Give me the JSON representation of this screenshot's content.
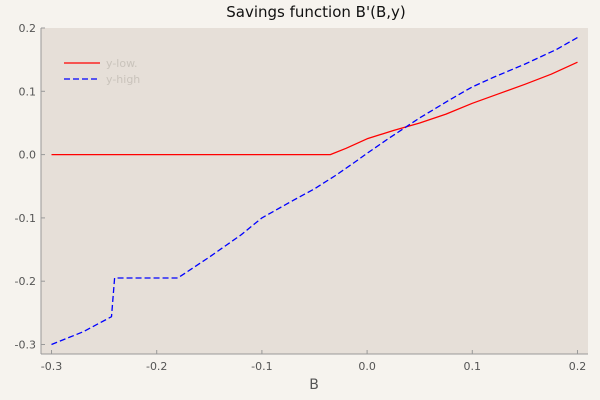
{
  "chart_data": {
    "type": "line",
    "title": "Savings function B'(B,y)",
    "xlabel": "B",
    "ylabel": "",
    "xlim": [
      -0.31,
      0.21
    ],
    "ylim": [
      -0.315,
      0.2
    ],
    "xticks": [
      -0.3,
      -0.2,
      -0.1,
      0.0,
      0.1,
      0.2
    ],
    "xtick_labels": [
      "-0.3",
      "-0.2",
      "-0.1",
      "0.0",
      "0.1",
      "0.2"
    ],
    "yticks": [
      -0.3,
      -0.2,
      -0.1,
      0.0,
      0.1,
      0.2
    ],
    "ytick_labels": [
      "-0.3",
      "-0.2",
      "-0.1",
      "0.0",
      "0.1",
      "0.2"
    ],
    "grid": false,
    "legend_position": "top-left",
    "background_color": "#e6dfd8",
    "series": [
      {
        "name": "y-low.",
        "color": "#ff0000",
        "style": "solid",
        "x": [
          -0.3,
          -0.25,
          -0.2,
          -0.15,
          -0.1,
          -0.05,
          -0.035,
          -0.02,
          0.0,
          0.025,
          0.05,
          0.075,
          0.1,
          0.125,
          0.15,
          0.175,
          0.2
        ],
        "y": [
          0.0,
          0.0,
          0.0,
          0.0,
          0.0,
          0.0,
          0.0,
          0.01,
          0.025,
          0.038,
          0.05,
          0.064,
          0.081,
          0.096,
          0.111,
          0.127,
          0.146
        ]
      },
      {
        "name": "y-high",
        "color": "#0000ff",
        "style": "dashed",
        "x": [
          -0.3,
          -0.27,
          -0.243,
          -0.24,
          -0.23,
          -0.2,
          -0.18,
          -0.15,
          -0.12,
          -0.1,
          -0.07,
          -0.05,
          -0.03,
          -0.01,
          0.0,
          0.02,
          0.05,
          0.08,
          0.1,
          0.12,
          0.15,
          0.18,
          0.2
        ],
        "y": [
          -0.3,
          -0.28,
          -0.256,
          -0.195,
          -0.195,
          -0.195,
          -0.195,
          -0.162,
          -0.127,
          -0.1,
          -0.072,
          -0.054,
          -0.033,
          -0.01,
          0.002,
          0.025,
          0.058,
          0.088,
          0.107,
          0.122,
          0.143,
          0.166,
          0.185
        ]
      }
    ]
  }
}
